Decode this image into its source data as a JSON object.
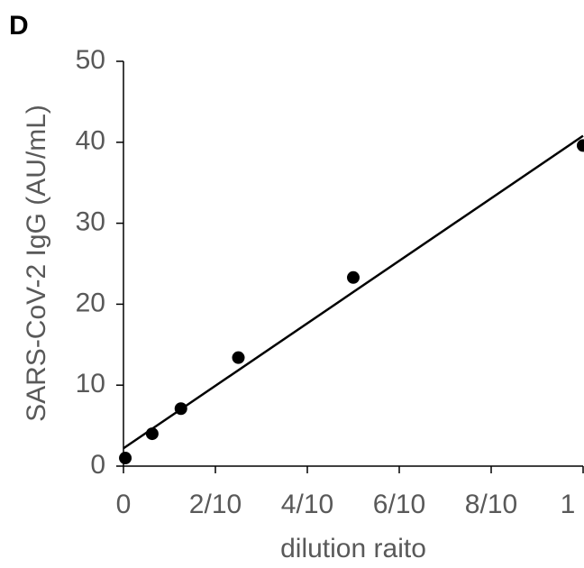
{
  "chart_data": {
    "type": "scatter",
    "panel_label": "D",
    "x_label": "dilution raito",
    "y_label": "SARS-CoV-2 IgG (AU/mL)",
    "x": [
      0.004,
      0.0625,
      0.125,
      0.25,
      0.5,
      1
    ],
    "values": [
      1.0,
      4.0,
      7.1,
      13.4,
      23.3,
      39.6
    ],
    "color": "#000000",
    "trendline": {
      "x": [
        0,
        1
      ],
      "values": [
        2.2,
        40.8
      ],
      "color": "#000000"
    },
    "xlim": [
      0,
      1
    ],
    "xticks": [
      0,
      {
        "value": 0.2,
        "label": "2/10"
      },
      {
        "value": 0.4,
        "label": "4/10"
      },
      {
        "value": 0.6,
        "label": "6/10"
      },
      {
        "value": 0.8,
        "label": "8/10"
      },
      1
    ],
    "ylim": [
      0,
      50
    ],
    "yticks": [
      0,
      10,
      20,
      30,
      40,
      50
    ],
    "grid": false
  }
}
